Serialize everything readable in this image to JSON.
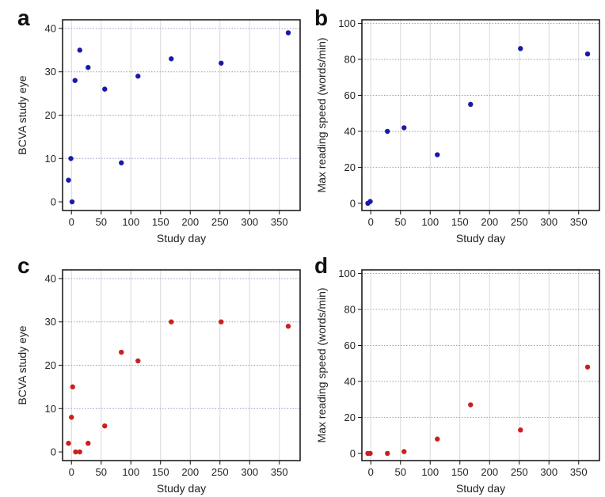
{
  "chart_data": [
    {
      "panel": "a",
      "type": "scatter",
      "xlabel": "Study day",
      "ylabel": "BCVA study eye",
      "xlim": [
        -15,
        385
      ],
      "ylim": [
        -2,
        42
      ],
      "xticks": [
        0,
        50,
        100,
        150,
        200,
        250,
        300,
        350
      ],
      "yticks": [
        0,
        10,
        20,
        30,
        40
      ],
      "color": "#1a1aa8",
      "points": [
        {
          "x": -5,
          "y": 5
        },
        {
          "x": -1,
          "y": 10
        },
        {
          "x": 1,
          "y": 0
        },
        {
          "x": 6,
          "y": 28
        },
        {
          "x": 14,
          "y": 35
        },
        {
          "x": 28,
          "y": 31
        },
        {
          "x": 56,
          "y": 26
        },
        {
          "x": 84,
          "y": 9
        },
        {
          "x": 112,
          "y": 29
        },
        {
          "x": 168,
          "y": 33
        },
        {
          "x": 252,
          "y": 32
        },
        {
          "x": 365,
          "y": 39
        }
      ]
    },
    {
      "panel": "b",
      "type": "scatter",
      "xlabel": "Study day",
      "ylabel": "Max reading speed (words/min)",
      "xlim": [
        -15,
        385
      ],
      "ylim": [
        -4,
        102
      ],
      "xticks": [
        0,
        50,
        100,
        150,
        200,
        250,
        300,
        350
      ],
      "yticks": [
        0,
        20,
        40,
        60,
        80,
        100
      ],
      "color": "#1a1aa8",
      "points": [
        {
          "x": -5,
          "y": 0
        },
        {
          "x": -1,
          "y": 1
        },
        {
          "x": 28,
          "y": 40
        },
        {
          "x": 56,
          "y": 42
        },
        {
          "x": 112,
          "y": 27
        },
        {
          "x": 168,
          "y": 55
        },
        {
          "x": 252,
          "y": 86
        },
        {
          "x": 365,
          "y": 83
        }
      ]
    },
    {
      "panel": "c",
      "type": "scatter",
      "xlabel": "Study day",
      "ylabel": "BCVA study eye",
      "xlim": [
        -15,
        385
      ],
      "ylim": [
        -2,
        42
      ],
      "xticks": [
        0,
        50,
        100,
        150,
        200,
        250,
        300,
        350
      ],
      "yticks": [
        0,
        10,
        20,
        30,
        40
      ],
      "color": "#cc1f1f",
      "points": [
        {
          "x": -5,
          "y": 2
        },
        {
          "x": 0,
          "y": 8
        },
        {
          "x": 2,
          "y": 15
        },
        {
          "x": 7,
          "y": 0
        },
        {
          "x": 14,
          "y": 0
        },
        {
          "x": 28,
          "y": 2
        },
        {
          "x": 56,
          "y": 6
        },
        {
          "x": 84,
          "y": 23
        },
        {
          "x": 112,
          "y": 21
        },
        {
          "x": 168,
          "y": 30
        },
        {
          "x": 252,
          "y": 30
        },
        {
          "x": 365,
          "y": 29
        }
      ]
    },
    {
      "panel": "d",
      "type": "scatter",
      "xlabel": "Study day",
      "ylabel": "Max reading speed (words/min)",
      "xlim": [
        -15,
        385
      ],
      "ylim": [
        -4,
        102
      ],
      "xticks": [
        0,
        50,
        100,
        150,
        200,
        250,
        300,
        350
      ],
      "yticks": [
        0,
        20,
        40,
        60,
        80,
        100
      ],
      "color": "#cc1f1f",
      "points": [
        {
          "x": -5,
          "y": 0
        },
        {
          "x": -1,
          "y": 0
        },
        {
          "x": 28,
          "y": 0
        },
        {
          "x": 56,
          "y": 1
        },
        {
          "x": 112,
          "y": 8
        },
        {
          "x": 168,
          "y": 27
        },
        {
          "x": 252,
          "y": 13
        },
        {
          "x": 365,
          "y": 48
        }
      ]
    }
  ]
}
